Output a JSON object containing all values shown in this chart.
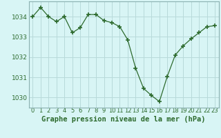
{
  "x": [
    0,
    1,
    2,
    3,
    4,
    5,
    6,
    7,
    8,
    9,
    10,
    11,
    12,
    13,
    14,
    15,
    16,
    17,
    18,
    19,
    20,
    21,
    22,
    23
  ],
  "y": [
    1034.0,
    1034.45,
    1034.0,
    1033.75,
    1034.0,
    1033.2,
    1033.45,
    1034.1,
    1034.1,
    1033.8,
    1033.7,
    1033.5,
    1032.85,
    1031.45,
    1030.45,
    1030.1,
    1029.8,
    1031.05,
    1032.1,
    1032.55,
    1032.9,
    1033.2,
    1033.5,
    1033.55
  ],
  "line_color": "#2d6a2d",
  "marker_color": "#2d6a2d",
  "bg_color": "#d8f5f5",
  "grid_color": "#b8dada",
  "axis_color": "#8ab0b0",
  "title": "Graphe pression niveau de la mer (hPa)",
  "ylabel_ticks": [
    1030,
    1031,
    1032,
    1033,
    1034
  ],
  "xlim": [
    -0.5,
    23.5
  ],
  "ylim": [
    1029.5,
    1034.75
  ],
  "title_fontsize": 7.5,
  "tick_fontsize": 6.5
}
